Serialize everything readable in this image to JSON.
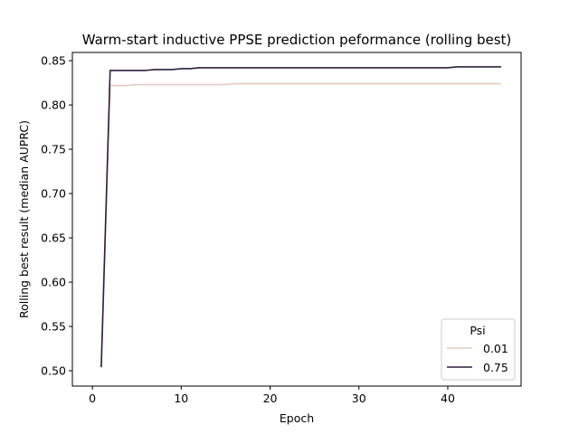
{
  "chart_data": {
    "type": "line",
    "title": "Warm-start inductive PPSE prediction peformance (rolling best)",
    "xlabel": "Epoch",
    "ylabel": "Rolling best result (median AUPRC)",
    "xlim": [
      -2.25,
      48.25
    ],
    "ylim": [
      0.4827,
      0.8593
    ],
    "xticks": [
      0,
      10,
      20,
      30,
      40
    ],
    "yticks": [
      0.5,
      0.55,
      0.6,
      0.65,
      0.7,
      0.75,
      0.8,
      0.85
    ],
    "grid": false,
    "legend": {
      "title": "Psi",
      "placement": "lower-right"
    },
    "series": [
      {
        "name": "0.01",
        "color": "#e8c9c0",
        "x": [
          1,
          2,
          3,
          4,
          5,
          6,
          7,
          8,
          9,
          10,
          11,
          12,
          13,
          14,
          15,
          16,
          17,
          18,
          19,
          20,
          21,
          22,
          23,
          24,
          25,
          26,
          27,
          28,
          29,
          30,
          31,
          32,
          33,
          34,
          35,
          36,
          37,
          38,
          39,
          40,
          41,
          42,
          43,
          44,
          45,
          46
        ],
        "y": [
          0.504,
          0.822,
          0.822,
          0.822,
          0.823,
          0.823,
          0.823,
          0.823,
          0.823,
          0.823,
          0.823,
          0.823,
          0.823,
          0.823,
          0.823,
          0.824,
          0.824,
          0.824,
          0.824,
          0.824,
          0.824,
          0.824,
          0.824,
          0.824,
          0.824,
          0.824,
          0.824,
          0.824,
          0.824,
          0.824,
          0.824,
          0.824,
          0.824,
          0.824,
          0.824,
          0.824,
          0.824,
          0.824,
          0.824,
          0.824,
          0.824,
          0.824,
          0.824,
          0.824,
          0.824,
          0.824
        ]
      },
      {
        "name": "0.75",
        "color": "#2d1e3e",
        "x": [
          1,
          2,
          3,
          4,
          5,
          6,
          7,
          8,
          9,
          10,
          11,
          12,
          13,
          14,
          15,
          16,
          17,
          18,
          19,
          20,
          21,
          22,
          23,
          24,
          25,
          26,
          27,
          28,
          29,
          30,
          31,
          32,
          33,
          34,
          35,
          36,
          37,
          38,
          39,
          40,
          41,
          42,
          43,
          44,
          45,
          46
        ],
        "y": [
          0.504,
          0.839,
          0.839,
          0.839,
          0.839,
          0.839,
          0.84,
          0.84,
          0.84,
          0.841,
          0.841,
          0.842,
          0.842,
          0.842,
          0.842,
          0.842,
          0.842,
          0.842,
          0.842,
          0.842,
          0.842,
          0.842,
          0.842,
          0.842,
          0.842,
          0.842,
          0.842,
          0.842,
          0.842,
          0.842,
          0.842,
          0.842,
          0.842,
          0.842,
          0.842,
          0.842,
          0.842,
          0.842,
          0.842,
          0.842,
          0.843,
          0.843,
          0.843,
          0.843,
          0.843,
          0.843
        ]
      }
    ]
  }
}
